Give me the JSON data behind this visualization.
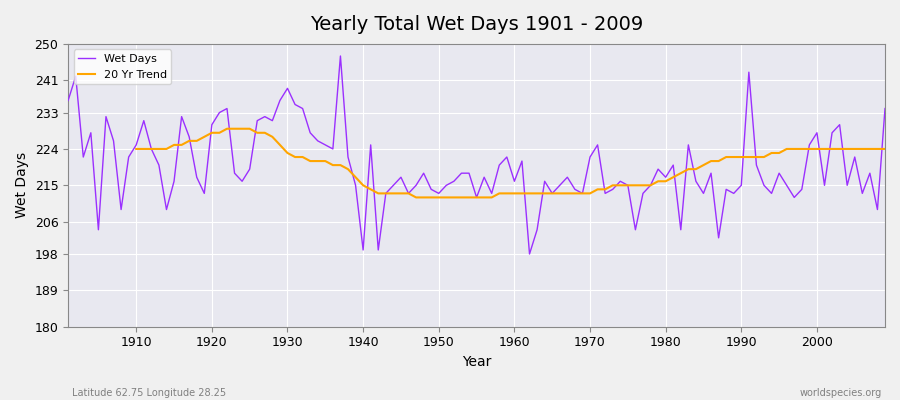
{
  "title": "Yearly Total Wet Days 1901 - 2009",
  "xlabel": "Year",
  "ylabel": "Wet Days",
  "subtitle": "Latitude 62.75 Longitude 28.25",
  "watermark": "worldspecies.org",
  "legend_wet": "Wet Days",
  "legend_trend": "20 Yr Trend",
  "ylim": [
    180,
    250
  ],
  "yticks": [
    180,
    189,
    198,
    206,
    215,
    224,
    233,
    241,
    250
  ],
  "wet_color": "#9B30FF",
  "trend_color": "#FFA500",
  "bg_color": "#E8E8F0",
  "years": [
    1901,
    1902,
    1903,
    1904,
    1905,
    1906,
    1907,
    1908,
    1909,
    1910,
    1911,
    1912,
    1913,
    1914,
    1915,
    1916,
    1917,
    1918,
    1919,
    1920,
    1921,
    1922,
    1923,
    1924,
    1925,
    1926,
    1927,
    1928,
    1929,
    1930,
    1931,
    1932,
    1933,
    1934,
    1935,
    1936,
    1937,
    1938,
    1939,
    1940,
    1941,
    1942,
    1943,
    1944,
    1945,
    1946,
    1947,
    1948,
    1949,
    1950,
    1951,
    1952,
    1953,
    1954,
    1955,
    1956,
    1957,
    1958,
    1959,
    1960,
    1961,
    1962,
    1963,
    1964,
    1965,
    1966,
    1967,
    1968,
    1969,
    1970,
    1971,
    1972,
    1973,
    1974,
    1975,
    1976,
    1977,
    1978,
    1979,
    1980,
    1981,
    1982,
    1983,
    1984,
    1985,
    1986,
    1987,
    1988,
    1989,
    1990,
    1991,
    1992,
    1993,
    1994,
    1995,
    1996,
    1997,
    1998,
    1999,
    2000,
    2001,
    2002,
    2003,
    2004,
    2005,
    2006,
    2007,
    2008,
    2009
  ],
  "wet_days": [
    236,
    242,
    222,
    228,
    204,
    232,
    226,
    209,
    222,
    225,
    231,
    224,
    220,
    209,
    216,
    232,
    227,
    217,
    213,
    230,
    233,
    234,
    218,
    216,
    219,
    231,
    232,
    231,
    236,
    239,
    235,
    234,
    228,
    226,
    225,
    224,
    247,
    222,
    215,
    199,
    225,
    199,
    213,
    215,
    217,
    213,
    215,
    218,
    214,
    213,
    215,
    216,
    218,
    218,
    212,
    217,
    213,
    220,
    222,
    216,
    221,
    198,
    204,
    216,
    213,
    215,
    217,
    214,
    213,
    222,
    225,
    213,
    214,
    216,
    215,
    204,
    213,
    215,
    219,
    217,
    220,
    204,
    225,
    216,
    213,
    218,
    202,
    214,
    213,
    215,
    243,
    220,
    215,
    213,
    218,
    215,
    212,
    214,
    225,
    228,
    215,
    228,
    230,
    215,
    222,
    213,
    218,
    209,
    234
  ],
  "trend_years": [
    1910,
    1911,
    1912,
    1913,
    1914,
    1915,
    1916,
    1917,
    1918,
    1919,
    1920,
    1921,
    1922,
    1923,
    1924,
    1925,
    1926,
    1927,
    1928,
    1929,
    1930,
    1931,
    1932,
    1933,
    1934,
    1935,
    1936,
    1937,
    1938,
    1939,
    1940,
    1941,
    1942,
    1943,
    1944,
    1945,
    1946,
    1947,
    1948,
    1949,
    1950,
    1951,
    1952,
    1953,
    1954,
    1955,
    1956,
    1957,
    1958,
    1959,
    1960,
    1961,
    1962,
    1963,
    1964,
    1965,
    1966,
    1967,
    1968,
    1969,
    1970,
    1971,
    1972,
    1973,
    1974,
    1975,
    1976,
    1977,
    1978,
    1979,
    1980,
    1981,
    1982,
    1983,
    1984,
    1985,
    1986,
    1987,
    1988,
    1989,
    1990,
    1991,
    1992,
    1993,
    1994,
    1995,
    1996,
    1997,
    1998,
    1999,
    2000,
    2001,
    2002,
    2003,
    2004,
    2005,
    2006,
    2007,
    2008,
    2009
  ],
  "trend_vals": [
    224,
    224,
    224,
    224,
    224,
    225,
    225,
    226,
    226,
    227,
    228,
    228,
    229,
    229,
    229,
    229,
    228,
    228,
    227,
    225,
    223,
    222,
    222,
    221,
    221,
    221,
    220,
    220,
    219,
    217,
    215,
    214,
    213,
    213,
    213,
    213,
    213,
    212,
    212,
    212,
    212,
    212,
    212,
    212,
    212,
    212,
    212,
    212,
    213,
    213,
    213,
    213,
    213,
    213,
    213,
    213,
    213,
    213,
    213,
    213,
    213,
    214,
    214,
    215,
    215,
    215,
    215,
    215,
    215,
    216,
    216,
    217,
    218,
    219,
    219,
    220,
    221,
    221,
    222,
    222,
    222,
    222,
    222,
    222,
    223,
    223,
    224,
    224,
    224,
    224,
    224,
    224,
    224,
    224,
    224,
    224,
    224,
    224,
    224,
    224
  ]
}
